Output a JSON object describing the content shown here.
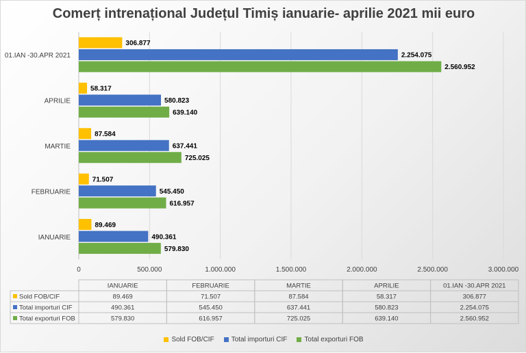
{
  "chart_data": {
    "type": "bar",
    "orientation": "horizontal",
    "title": "Comerț intrenațional  Județul Timiș  ianuarie- aprilie 2021 mii euro",
    "categories": [
      "IANUARIE",
      "FEBRUARIE",
      "MARTIE",
      "APRILIE",
      "01.IAN -30.APR 2021"
    ],
    "series": [
      {
        "name": "Sold FOB/CIF",
        "color": "#ffc000",
        "values": [
          89469,
          71507,
          87584,
          58317,
          306877
        ],
        "labels": [
          "89.469",
          "71.507",
          "87.584",
          "58.317",
          "306.877"
        ]
      },
      {
        "name": "Total importuri CIF",
        "color": "#4472c4",
        "values": [
          490361,
          545450,
          637441,
          580823,
          2254075
        ],
        "labels": [
          "490.361",
          "545.450",
          "637.441",
          "580.823",
          "2.254.075"
        ]
      },
      {
        "name": "Total exporturi FOB",
        "color": "#70ad47",
        "values": [
          579830,
          616957,
          725025,
          639140,
          2560952
        ],
        "labels": [
          "579.830",
          "616.957",
          "725.025",
          "639.140",
          "2.560.952"
        ]
      }
    ],
    "xlim": [
      0,
      3000000
    ],
    "x_ticks": [
      0,
      500000,
      1000000,
      1500000,
      2000000,
      2500000,
      3000000
    ],
    "x_tick_labels": [
      "0",
      "500.000",
      "1.000.000",
      "1.500.000",
      "2.000.000",
      "2.500.000",
      "3.000.000"
    ],
    "grid": true,
    "data_table": true,
    "legend_position": "bottom"
  }
}
